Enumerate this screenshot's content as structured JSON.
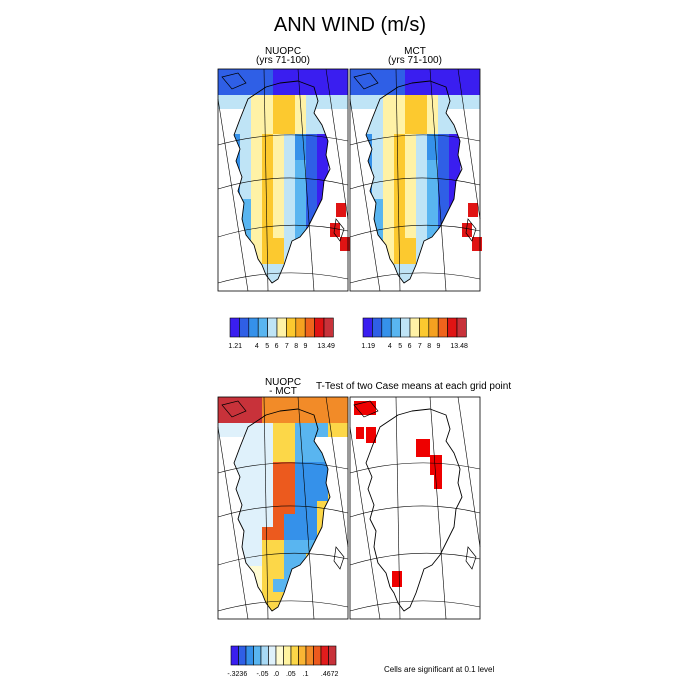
{
  "figure": {
    "title": "ANN WIND (m/s)",
    "ttest_title": "T-Test of two Case means at each grid point",
    "significance_note": "Cells are significant at 0.1 level"
  },
  "panels": {
    "nuopc": {
      "title_line1": "NUOPC",
      "title_line2": "(yrs 71-100)"
    },
    "mct": {
      "title_line1": "MCT",
      "title_line2": "(yrs 71-100)"
    },
    "diff": {
      "title_line1": "NUOPC",
      "title_line2": "- MCT"
    },
    "ttest": {
      "title_line1": ""
    }
  },
  "colors": {
    "wind_palette": [
      "#3a1ef0",
      "#2f5fe6",
      "#3591ea",
      "#59b5f0",
      "#bfe4f6",
      "#fff2a6",
      "#fcc92f",
      "#f5a120",
      "#f0641c",
      "#e01414",
      "#c8323a"
    ],
    "diff_palette": [
      "#3a1ef0",
      "#2f5fe6",
      "#3591ea",
      "#59b5f0",
      "#a8d9f5",
      "#dff1fb",
      "#fffbd1",
      "#fff3a0",
      "#fcd748",
      "#f9b534",
      "#f28b28",
      "#ec5a1e",
      "#e11c1c",
      "#c8323a"
    ],
    "significant": "#ee0000"
  },
  "chart_data": [
    {
      "type": "heatmap",
      "panel": "NUOPC (yrs 71-100)",
      "variable": "ANN WIND (m/s)",
      "colorbar": {
        "min": 1.21,
        "max": 13.49,
        "levels": [
          4,
          5,
          6,
          7,
          8,
          9
        ],
        "labels": [
          "1.21",
          "4",
          "5",
          "6",
          "7",
          "8",
          "9",
          "13.49"
        ]
      }
    },
    {
      "type": "heatmap",
      "panel": "MCT (yrs 71-100)",
      "variable": "ANN WIND (m/s)",
      "colorbar": {
        "min": 1.19,
        "max": 13.48,
        "levels": [
          4,
          5,
          6,
          7,
          8,
          9
        ],
        "labels": [
          "1.19",
          "4",
          "5",
          "6",
          "7",
          "8",
          "9",
          "13.48"
        ]
      }
    },
    {
      "type": "heatmap",
      "panel": "NUOPC - MCT",
      "colorbar": {
        "min": -0.3236,
        "max": 0.4672,
        "levels": [
          -0.05,
          0,
          0.05,
          0.1
        ],
        "labels": [
          "-.3236",
          "-.05",
          ".0",
          ".05",
          ".1",
          ".4672"
        ]
      }
    },
    {
      "type": "heatmap",
      "panel": "T-Test of two Case means at each grid point",
      "legend": "Cells are significant at 0.1 level"
    }
  ]
}
